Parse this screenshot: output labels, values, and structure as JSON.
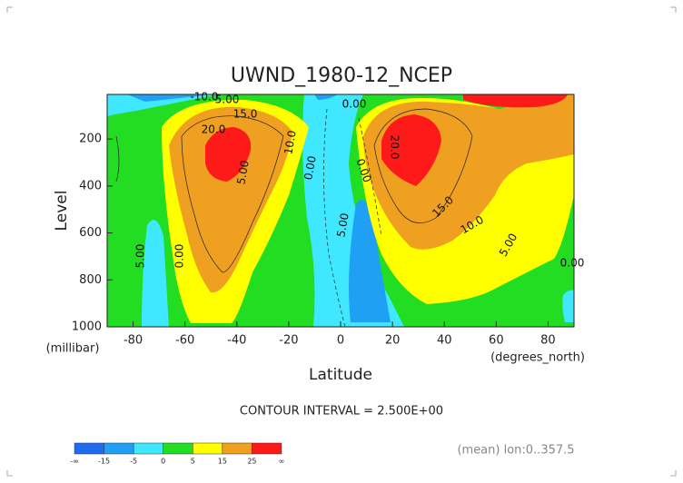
{
  "chart_data": {
    "type": "contour",
    "title": "UWND_1980-12_NCEP",
    "x_label": "Latitude",
    "y_label": "Level",
    "x_units": "(degrees_north)",
    "y_units": "(millibar)",
    "xlim": [
      -90,
      90
    ],
    "ylim": [
      1000,
      10
    ],
    "xticks": [
      -80,
      -60,
      -40,
      -20,
      0,
      20,
      40,
      60,
      80
    ],
    "yticks": [
      200,
      400,
      600,
      800,
      1000
    ],
    "contour_interval_text": "CONTOUR INTERVAL = 2.500E+00",
    "footnote": "(mean) lon:0..357.5",
    "contour_labels": [
      "-10.0",
      "5.00",
      "15.0",
      "20.0",
      "10.0",
      "5.00",
      "0.00",
      "0.00",
      "5.00",
      "0.00",
      "0.00",
      "5.00",
      "20.0",
      "15.0",
      "10.0",
      "5.00",
      "0.00"
    ],
    "colorbar": {
      "labels": [
        "-∞",
        "-15",
        "-5",
        "0",
        "5",
        "15",
        "25",
        "∞"
      ],
      "colors": [
        "#1f6bf0",
        "#1fa0f5",
        "#40e8ff",
        "#22dd22",
        "#ffff00",
        "#f0a020",
        "#ff1a1a"
      ]
    }
  }
}
